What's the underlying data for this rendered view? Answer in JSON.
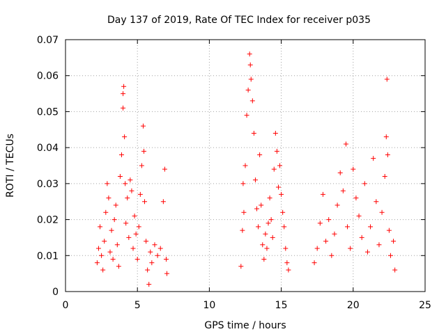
{
  "chart_data": {
    "type": "scatter",
    "title": "Day 137 of 2019, Rate Of TEC Index for receiver p035",
    "xlabel": "GPS time / hours",
    "ylabel": "ROTI / TECUs",
    "xlim": [
      0,
      25
    ],
    "ylim": [
      0,
      0.07
    ],
    "x_ticks": [
      "0",
      "5",
      "10",
      "15",
      "20",
      "25"
    ],
    "y_ticks": [
      "0",
      "0.01",
      "0.02",
      "0.03",
      "0.04",
      "0.05",
      "0.06",
      "0.07"
    ],
    "grid": true,
    "marker": "+",
    "color": "#ff0000",
    "series": [
      {
        "points": [
          [
            2.2,
            0.008
          ],
          [
            2.3,
            0.012
          ],
          [
            2.4,
            0.018
          ],
          [
            2.5,
            0.01
          ],
          [
            2.6,
            0.006
          ],
          [
            2.7,
            0.014
          ],
          [
            2.8,
            0.022
          ],
          [
            2.9,
            0.03
          ],
          [
            3.0,
            0.026
          ],
          [
            3.1,
            0.011
          ],
          [
            3.2,
            0.017
          ],
          [
            3.3,
            0.009
          ],
          [
            3.4,
            0.02
          ],
          [
            3.5,
            0.024
          ],
          [
            3.6,
            0.013
          ],
          [
            3.7,
            0.007
          ],
          [
            3.8,
            0.032
          ],
          [
            3.9,
            0.038
          ],
          [
            4.0,
            0.055
          ],
          [
            4.0,
            0.051
          ],
          [
            4.05,
            0.057
          ],
          [
            4.1,
            0.043
          ],
          [
            4.15,
            0.03
          ],
          [
            4.2,
            0.019
          ],
          [
            4.3,
            0.026
          ],
          [
            4.4,
            0.015
          ],
          [
            4.5,
            0.031
          ],
          [
            4.6,
            0.028
          ],
          [
            4.7,
            0.012
          ],
          [
            4.8,
            0.021
          ],
          [
            4.9,
            0.016
          ],
          [
            5.0,
            0.009
          ],
          [
            5.1,
            0.018
          ],
          [
            5.2,
            0.027
          ],
          [
            5.3,
            0.035
          ],
          [
            5.4,
            0.046
          ],
          [
            5.45,
            0.039
          ],
          [
            5.5,
            0.025
          ],
          [
            5.6,
            0.014
          ],
          [
            5.7,
            0.006
          ],
          [
            5.8,
            0.002
          ],
          [
            5.9,
            0.011
          ],
          [
            6.0,
            0.008
          ],
          [
            6.2,
            0.013
          ],
          [
            6.4,
            0.01
          ],
          [
            6.6,
            0.012
          ],
          [
            6.8,
            0.025
          ],
          [
            6.9,
            0.034
          ],
          [
            7.0,
            0.009
          ],
          [
            7.05,
            0.005
          ],
          [
            12.2,
            0.007
          ],
          [
            12.3,
            0.017
          ],
          [
            12.35,
            0.03
          ],
          [
            12.4,
            0.022
          ],
          [
            12.5,
            0.035
          ],
          [
            12.6,
            0.049
          ],
          [
            12.7,
            0.056
          ],
          [
            12.8,
            0.066
          ],
          [
            12.85,
            0.063
          ],
          [
            12.9,
            0.059
          ],
          [
            13.0,
            0.053
          ],
          [
            13.1,
            0.044
          ],
          [
            13.2,
            0.031
          ],
          [
            13.3,
            0.023
          ],
          [
            13.4,
            0.018
          ],
          [
            13.5,
            0.038
          ],
          [
            13.6,
            0.024
          ],
          [
            13.7,
            0.013
          ],
          [
            13.8,
            0.009
          ],
          [
            13.9,
            0.016
          ],
          [
            14.0,
            0.012
          ],
          [
            14.1,
            0.019
          ],
          [
            14.2,
            0.026
          ],
          [
            14.3,
            0.02
          ],
          [
            14.4,
            0.015
          ],
          [
            14.5,
            0.034
          ],
          [
            14.6,
            0.044
          ],
          [
            14.7,
            0.039
          ],
          [
            14.8,
            0.029
          ],
          [
            14.9,
            0.035
          ],
          [
            15.0,
            0.027
          ],
          [
            15.1,
            0.022
          ],
          [
            15.2,
            0.018
          ],
          [
            15.3,
            0.012
          ],
          [
            15.4,
            0.008
          ],
          [
            15.5,
            0.006
          ],
          [
            17.3,
            0.008
          ],
          [
            17.5,
            0.012
          ],
          [
            17.7,
            0.019
          ],
          [
            17.9,
            0.027
          ],
          [
            18.1,
            0.014
          ],
          [
            18.3,
            0.02
          ],
          [
            18.5,
            0.01
          ],
          [
            18.7,
            0.016
          ],
          [
            18.9,
            0.024
          ],
          [
            19.1,
            0.033
          ],
          [
            19.3,
            0.028
          ],
          [
            19.5,
            0.041
          ],
          [
            19.6,
            0.018
          ],
          [
            19.8,
            0.012
          ],
          [
            20.0,
            0.034
          ],
          [
            20.2,
            0.026
          ],
          [
            20.4,
            0.021
          ],
          [
            20.6,
            0.015
          ],
          [
            20.8,
            0.03
          ],
          [
            21.0,
            0.011
          ],
          [
            21.2,
            0.018
          ],
          [
            21.4,
            0.037
          ],
          [
            21.6,
            0.025
          ],
          [
            21.8,
            0.013
          ],
          [
            22.0,
            0.022
          ],
          [
            22.2,
            0.032
          ],
          [
            22.3,
            0.043
          ],
          [
            22.35,
            0.059
          ],
          [
            22.4,
            0.038
          ],
          [
            22.5,
            0.017
          ],
          [
            22.6,
            0.01
          ],
          [
            22.8,
            0.014
          ],
          [
            22.9,
            0.006
          ]
        ]
      }
    ]
  }
}
